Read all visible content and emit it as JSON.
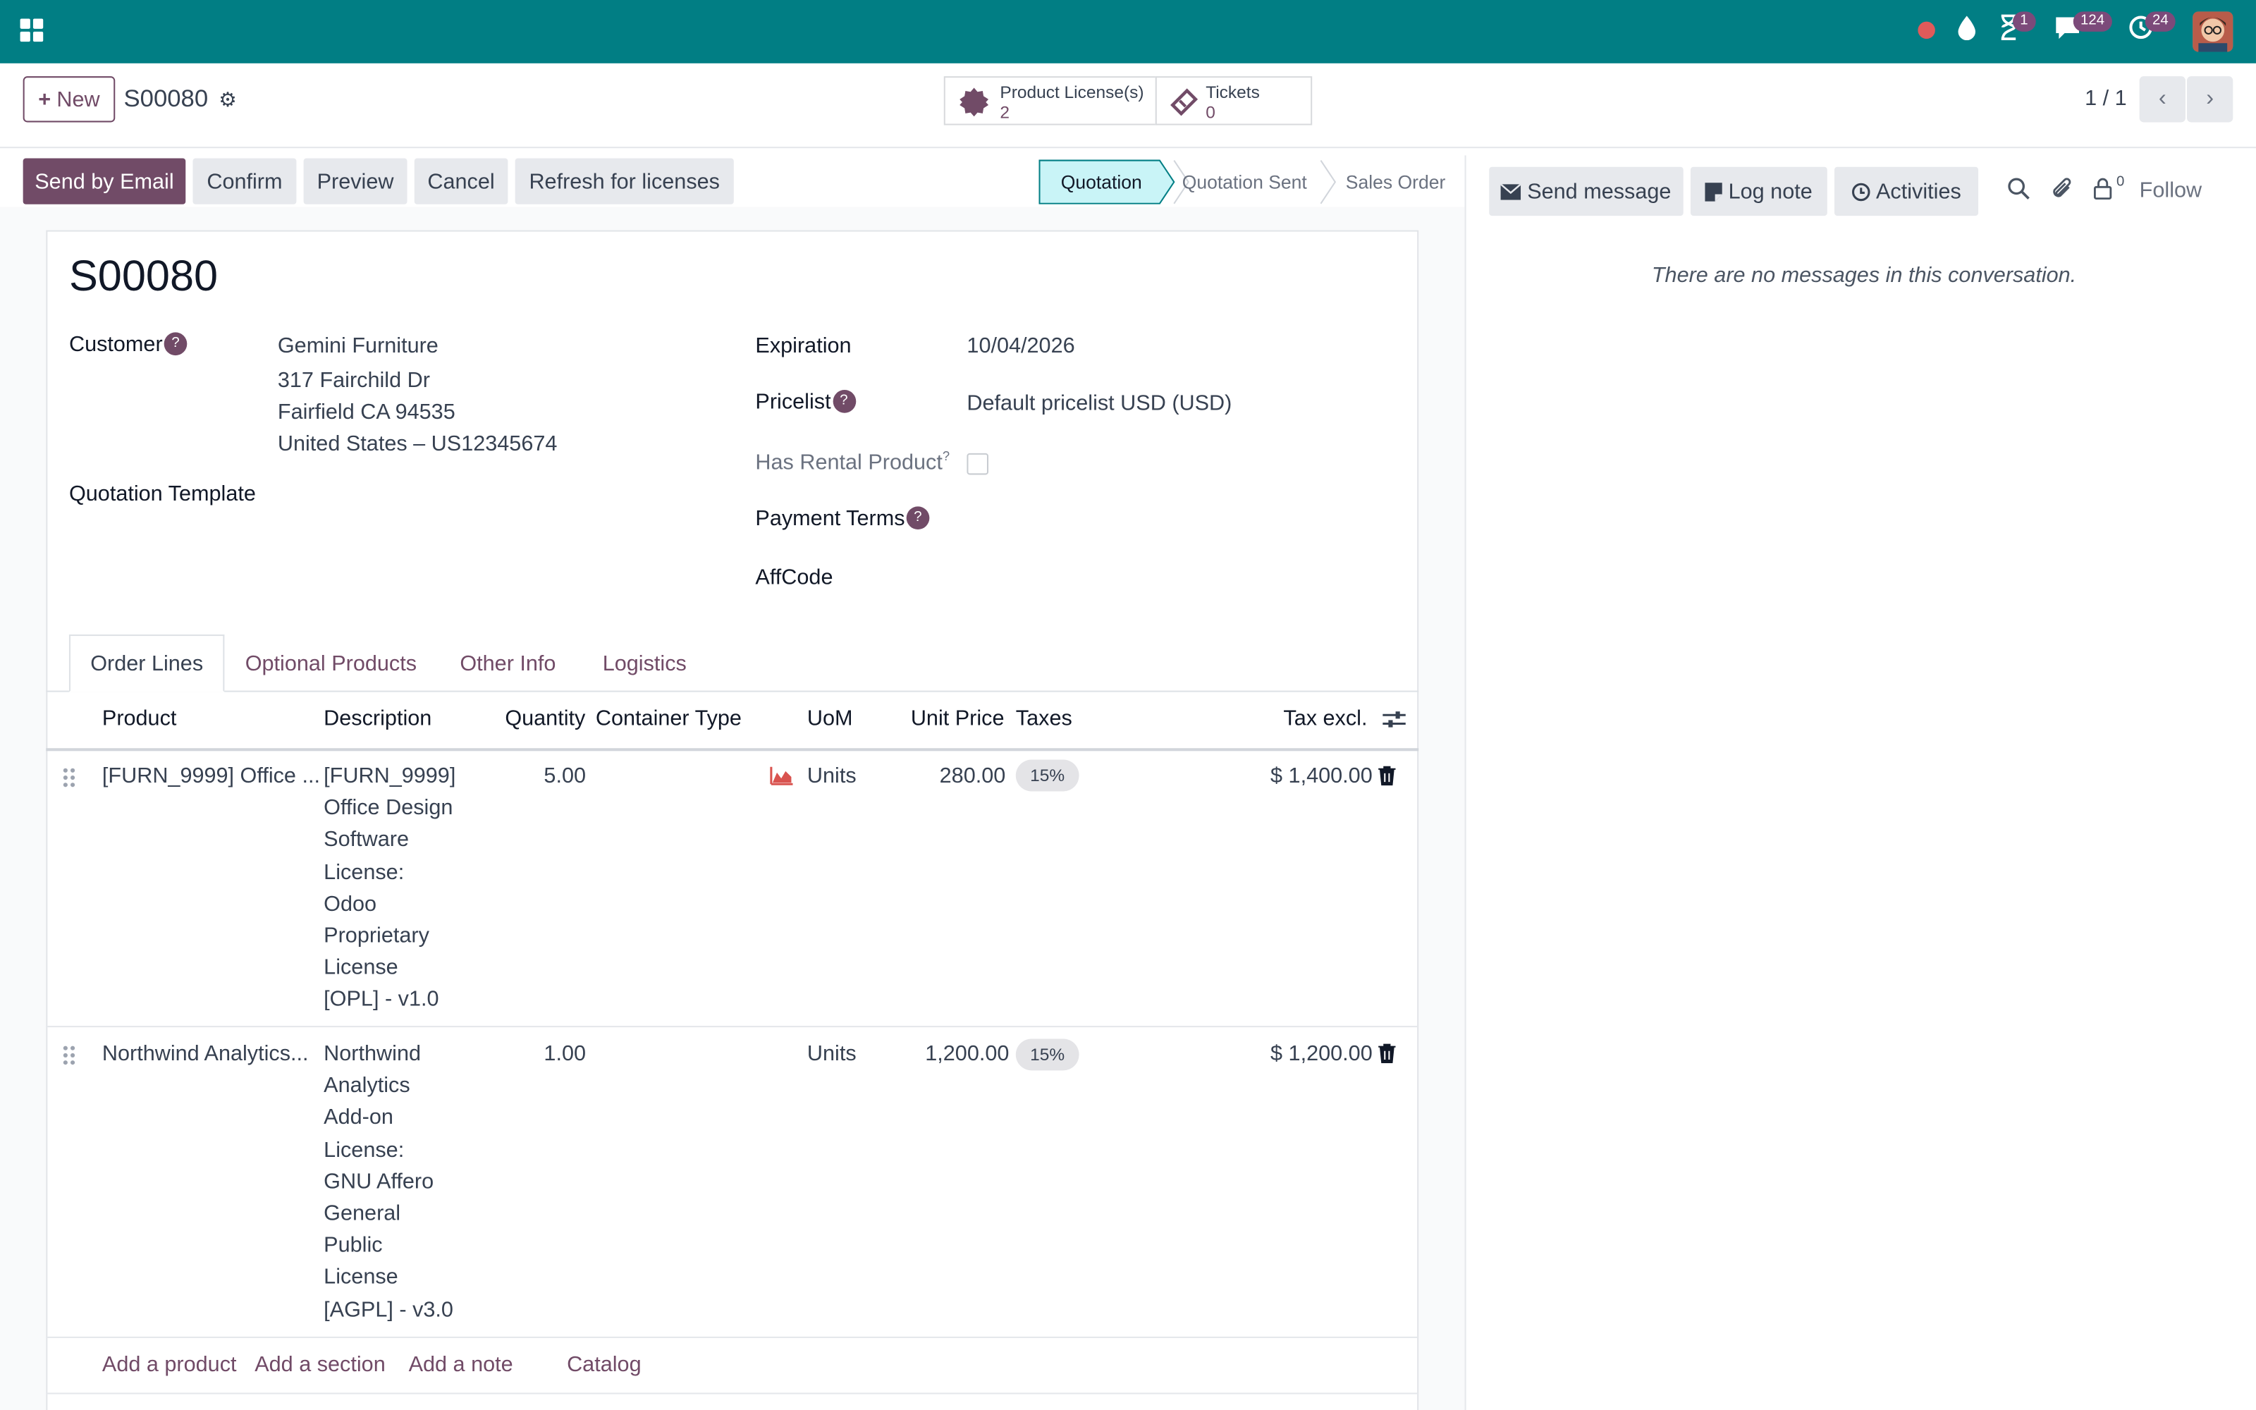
{
  "navbar": {
    "icons": [
      "apps-icon",
      "recording-dot-icon",
      "drop-icon",
      "hourglass-icon",
      "chat-icon",
      "activity-clock-icon",
      "user-avatar"
    ],
    "badges": {
      "activities": "1",
      "messages": "124",
      "clock": "24"
    },
    "brand_color": "#017e84"
  },
  "control": {
    "new_label": "New",
    "record_name": "S00080",
    "smart_buttons": [
      {
        "label": "Product License(s)",
        "value": "2"
      },
      {
        "label": "Tickets",
        "value": "0"
      }
    ],
    "pager": "1 / 1"
  },
  "statusbar": {
    "buttons": [
      "Send by Email",
      "Confirm",
      "Preview",
      "Cancel",
      "Refresh for licenses"
    ],
    "stages": [
      "Quotation",
      "Quotation Sent",
      "Sales Order"
    ],
    "active_stage": "Quotation",
    "primary_color": "#714b67"
  },
  "form": {
    "title": "S00080",
    "customer_label": "Customer",
    "customer": {
      "name": "Gemini Furniture",
      "street": "317 Fairchild Dr",
      "city": "Fairfield CA 94535",
      "country": "United States – US12345674"
    },
    "quotation_template_label": "Quotation Template",
    "expiration_label": "Expiration",
    "expiration_value": "10/04/2026",
    "pricelist_label": "Pricelist",
    "pricelist_value": "Default pricelist USD  (USD)",
    "rental_label": "Has Rental Product",
    "rental_checked": false,
    "payment_terms_label": "Payment Terms",
    "affcode_label": "AffCode",
    "help_mark": "?"
  },
  "tabs": [
    "Order Lines",
    "Optional Products",
    "Other Info",
    "Logistics"
  ],
  "order_lines": {
    "columns": [
      "Product",
      "Description",
      "Quantity",
      "Container Type",
      "UoM",
      "Unit Price",
      "Taxes",
      "Tax excl."
    ],
    "rows": [
      {
        "product": "[FURN_9999] Office ...",
        "description": [
          "[FURN_9999]",
          "Office Design",
          "Software",
          "License:",
          "Odoo",
          "Proprietary",
          "License",
          "[OPL] - v1.0"
        ],
        "quantity": "5.00",
        "uom": "Units",
        "unit_price": "280.00",
        "taxes": "15%",
        "subtotal": "$ 1,400.00"
      },
      {
        "product": "Northwind Analytics...",
        "description": [
          "Northwind",
          "Analytics",
          "Add-on",
          "License:",
          "GNU Affero",
          "General",
          "Public",
          "License",
          "[AGPL] - v3.0"
        ],
        "quantity": "1.00",
        "uom": "Units",
        "unit_price": "1,200.00",
        "taxes": "15%",
        "subtotal": "$ 1,200.00"
      }
    ],
    "add_links": [
      "Add a product",
      "Add a section",
      "Add a note",
      "Catalog"
    ]
  },
  "chatter": {
    "send_message": "Send message",
    "log_note": "Log note",
    "activities": "Activities",
    "followers_count": "0",
    "follow": "Follow",
    "empty_text": "There are no messages in this conversation."
  }
}
